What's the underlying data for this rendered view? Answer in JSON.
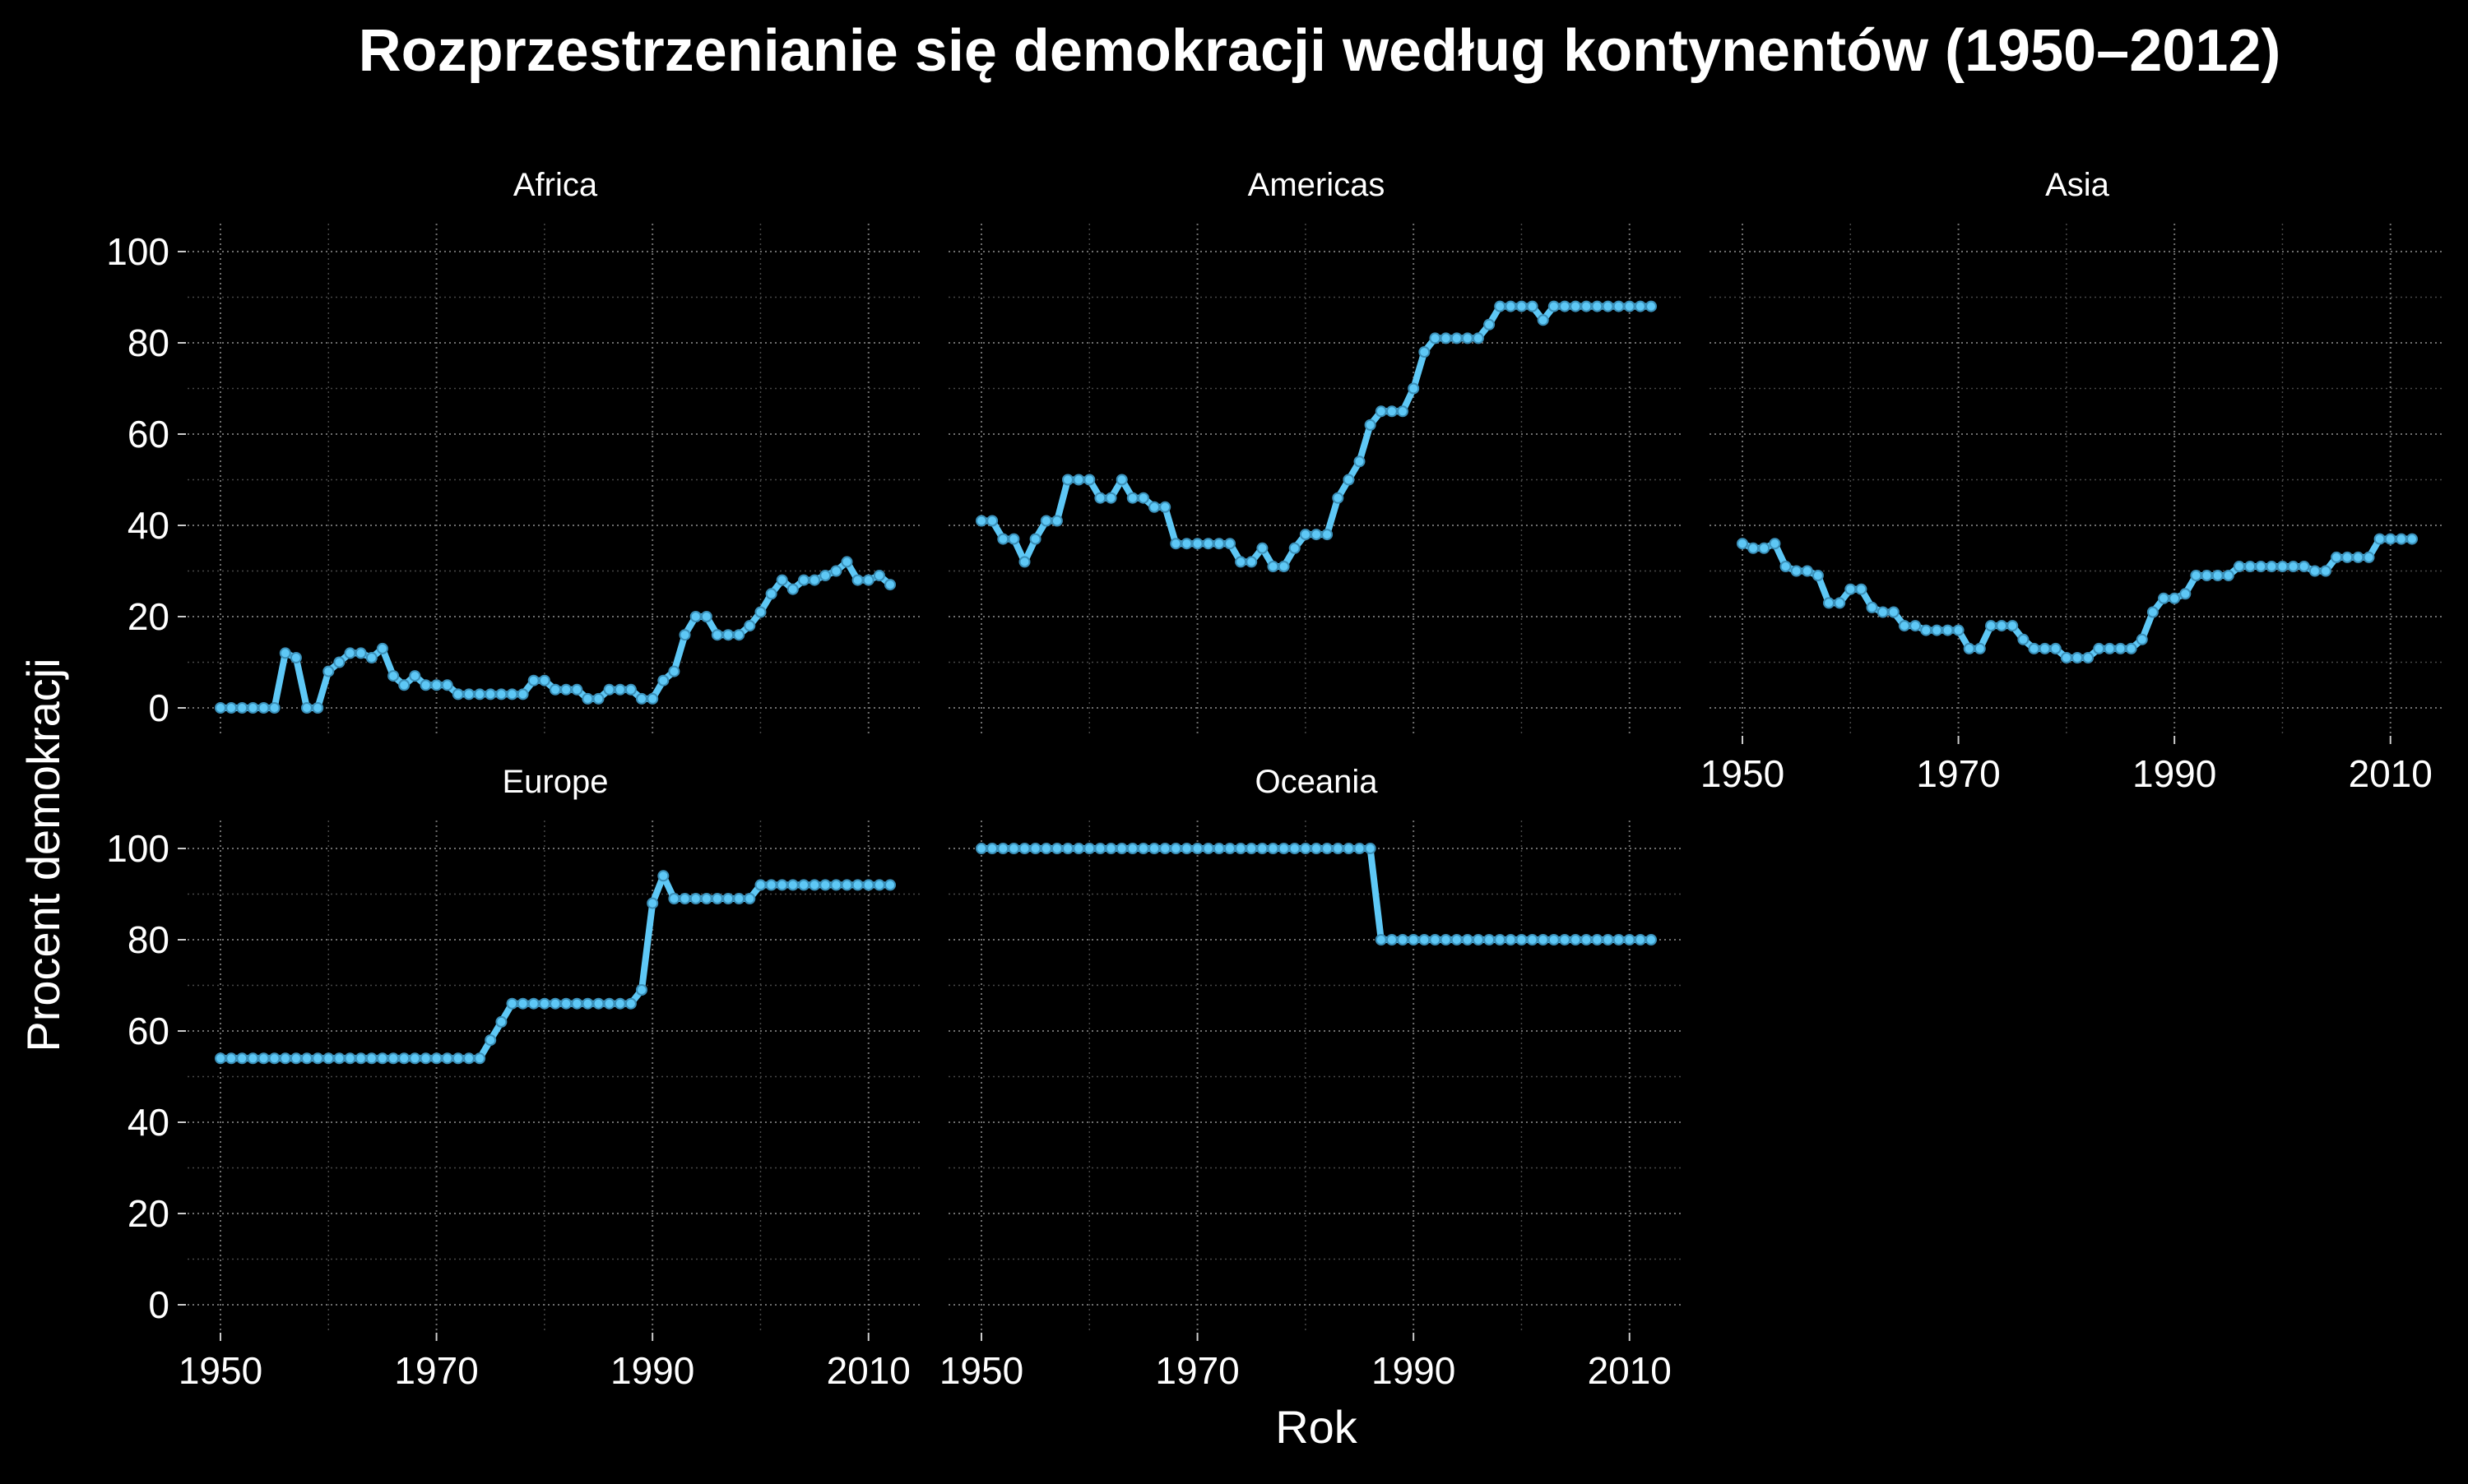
{
  "colors": {
    "background": "#000000",
    "series": "#5ec8f6",
    "text": "#ffffff",
    "grid": "#6e6e6e"
  },
  "chart_data": {
    "type": "line",
    "title": "Rozprzestrzenianie się demokracji według kontynentów (1950–2012)",
    "xlabel": "Rok",
    "ylabel": "Procent demokracji",
    "xlim": [
      1950,
      2012
    ],
    "ylim": [
      0,
      100
    ],
    "x_ticks": [
      1950,
      1970,
      1990,
      2010
    ],
    "y_ticks": [
      0,
      20,
      40,
      60,
      80,
      100
    ],
    "grid": true,
    "legend": "none",
    "facets": [
      {
        "name": "Africa",
        "x": [
          1950,
          1951,
          1952,
          1953,
          1954,
          1955,
          1956,
          1957,
          1958,
          1959,
          1960,
          1961,
          1962,
          1963,
          1964,
          1965,
          1966,
          1967,
          1968,
          1969,
          1970,
          1971,
          1972,
          1973,
          1974,
          1975,
          1976,
          1977,
          1978,
          1979,
          1980,
          1981,
          1982,
          1983,
          1984,
          1985,
          1986,
          1987,
          1988,
          1989,
          1990,
          1991,
          1992,
          1993,
          1994,
          1995,
          1996,
          1997,
          1998,
          1999,
          2000,
          2001,
          2002,
          2003,
          2004,
          2005,
          2006,
          2007,
          2008,
          2009,
          2010,
          2011,
          2012
        ],
        "y": [
          0,
          0,
          0,
          0,
          0,
          0,
          12,
          11,
          0,
          0,
          8,
          10,
          12,
          12,
          11,
          13,
          7,
          5,
          7,
          5,
          5,
          5,
          3,
          3,
          3,
          3,
          3,
          3,
          3,
          6,
          6,
          4,
          4,
          4,
          2,
          2,
          4,
          4,
          4,
          2,
          2,
          6,
          8,
          16,
          20,
          20,
          16,
          16,
          16,
          18,
          21,
          25,
          28,
          26,
          28,
          28,
          29,
          30,
          32,
          28,
          28,
          29,
          27
        ]
      },
      {
        "name": "Americas",
        "x": [
          1950,
          1951,
          1952,
          1953,
          1954,
          1955,
          1956,
          1957,
          1958,
          1959,
          1960,
          1961,
          1962,
          1963,
          1964,
          1965,
          1966,
          1967,
          1968,
          1969,
          1970,
          1971,
          1972,
          1973,
          1974,
          1975,
          1976,
          1977,
          1978,
          1979,
          1980,
          1981,
          1982,
          1983,
          1984,
          1985,
          1986,
          1987,
          1988,
          1989,
          1990,
          1991,
          1992,
          1993,
          1994,
          1995,
          1996,
          1997,
          1998,
          1999,
          2000,
          2001,
          2002,
          2003,
          2004,
          2005,
          2006,
          2007,
          2008,
          2009,
          2010,
          2011,
          2012
        ],
        "y": [
          41,
          41,
          37,
          37,
          32,
          37,
          41,
          41,
          50,
          50,
          50,
          46,
          46,
          50,
          46,
          46,
          44,
          44,
          36,
          36,
          36,
          36,
          36,
          36,
          32,
          32,
          35,
          31,
          31,
          35,
          38,
          38,
          38,
          46,
          50,
          54,
          62,
          65,
          65,
          65,
          70,
          78,
          81,
          81,
          81,
          81,
          81,
          84,
          88,
          88,
          88,
          88,
          85,
          88,
          88,
          88,
          88,
          88,
          88,
          88,
          88,
          88,
          88
        ]
      },
      {
        "name": "Asia",
        "x": [
          1950,
          1951,
          1952,
          1953,
          1954,
          1955,
          1956,
          1957,
          1958,
          1959,
          1960,
          1961,
          1962,
          1963,
          1964,
          1965,
          1966,
          1967,
          1968,
          1969,
          1970,
          1971,
          1972,
          1973,
          1974,
          1975,
          1976,
          1977,
          1978,
          1979,
          1980,
          1981,
          1982,
          1983,
          1984,
          1985,
          1986,
          1987,
          1988,
          1989,
          1990,
          1991,
          1992,
          1993,
          1994,
          1995,
          1996,
          1997,
          1998,
          1999,
          2000,
          2001,
          2002,
          2003,
          2004,
          2005,
          2006,
          2007,
          2008,
          2009,
          2010,
          2011,
          2012
        ],
        "y": [
          36,
          35,
          35,
          36,
          31,
          30,
          30,
          29,
          23,
          23,
          26,
          26,
          22,
          21,
          21,
          18,
          18,
          17,
          17,
          17,
          17,
          13,
          13,
          18,
          18,
          18,
          15,
          13,
          13,
          13,
          11,
          11,
          11,
          13,
          13,
          13,
          13,
          15,
          21,
          24,
          24,
          25,
          29,
          29,
          29,
          29,
          31,
          31,
          31,
          31,
          31,
          31,
          31,
          30,
          30,
          33,
          33,
          33,
          33,
          37,
          37,
          37,
          37
        ]
      },
      {
        "name": "Europe",
        "x": [
          1950,
          1951,
          1952,
          1953,
          1954,
          1955,
          1956,
          1957,
          1958,
          1959,
          1960,
          1961,
          1962,
          1963,
          1964,
          1965,
          1966,
          1967,
          1968,
          1969,
          1970,
          1971,
          1972,
          1973,
          1974,
          1975,
          1976,
          1977,
          1978,
          1979,
          1980,
          1981,
          1982,
          1983,
          1984,
          1985,
          1986,
          1987,
          1988,
          1989,
          1990,
          1991,
          1992,
          1993,
          1994,
          1995,
          1996,
          1997,
          1998,
          1999,
          2000,
          2001,
          2002,
          2003,
          2004,
          2005,
          2006,
          2007,
          2008,
          2009,
          2010,
          2011,
          2012
        ],
        "y": [
          54,
          54,
          54,
          54,
          54,
          54,
          54,
          54,
          54,
          54,
          54,
          54,
          54,
          54,
          54,
          54,
          54,
          54,
          54,
          54,
          54,
          54,
          54,
          54,
          54,
          58,
          62,
          66,
          66,
          66,
          66,
          66,
          66,
          66,
          66,
          66,
          66,
          66,
          66,
          69,
          88,
          94,
          89,
          89,
          89,
          89,
          89,
          89,
          89,
          89,
          92,
          92,
          92,
          92,
          92,
          92,
          92,
          92,
          92,
          92,
          92,
          92,
          92
        ]
      },
      {
        "name": "Oceania",
        "x": [
          1950,
          1951,
          1952,
          1953,
          1954,
          1955,
          1956,
          1957,
          1958,
          1959,
          1960,
          1961,
          1962,
          1963,
          1964,
          1965,
          1966,
          1967,
          1968,
          1969,
          1970,
          1971,
          1972,
          1973,
          1974,
          1975,
          1976,
          1977,
          1978,
          1979,
          1980,
          1981,
          1982,
          1983,
          1984,
          1985,
          1986,
          1987,
          1988,
          1989,
          1990,
          1991,
          1992,
          1993,
          1994,
          1995,
          1996,
          1997,
          1998,
          1999,
          2000,
          2001,
          2002,
          2003,
          2004,
          2005,
          2006,
          2007,
          2008,
          2009,
          2010,
          2011,
          2012
        ],
        "y": [
          100,
          100,
          100,
          100,
          100,
          100,
          100,
          100,
          100,
          100,
          100,
          100,
          100,
          100,
          100,
          100,
          100,
          100,
          100,
          100,
          100,
          100,
          100,
          100,
          100,
          100,
          100,
          100,
          100,
          100,
          100,
          100,
          100,
          100,
          100,
          100,
          100,
          80,
          80,
          80,
          80,
          80,
          80,
          80,
          80,
          80,
          80,
          80,
          80,
          80,
          80,
          80,
          80,
          80,
          80,
          80,
          80,
          80,
          80,
          80,
          80,
          80,
          80
        ]
      }
    ]
  }
}
